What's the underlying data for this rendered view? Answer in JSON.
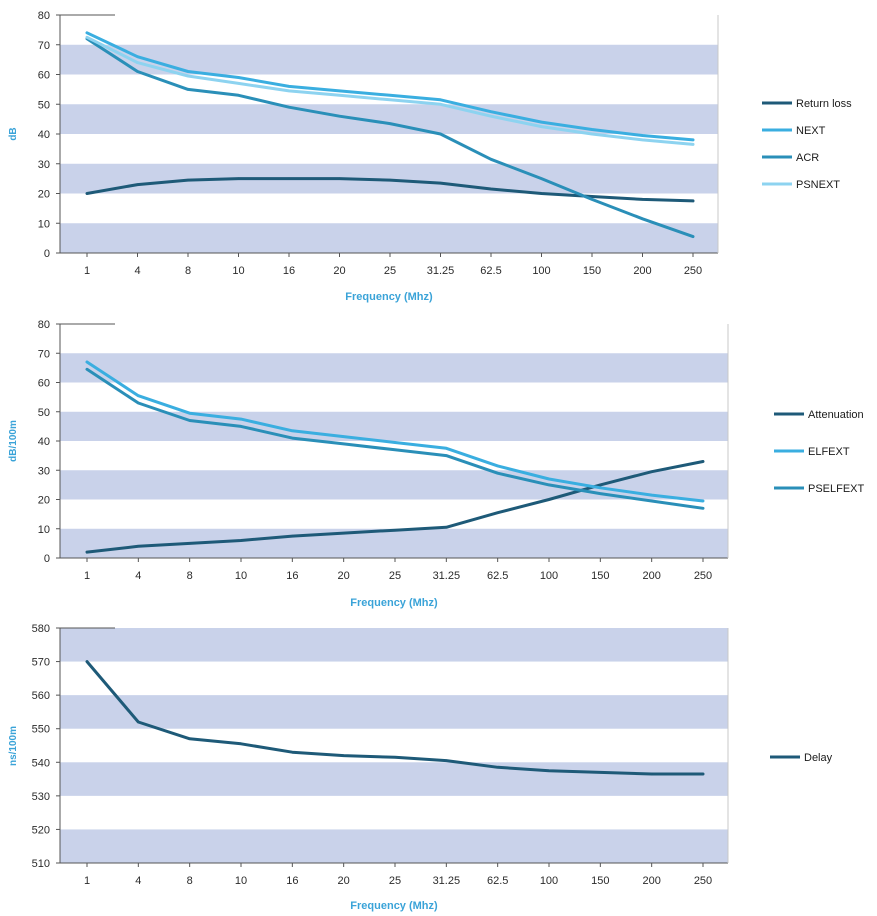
{
  "chart_data": [
    {
      "type": "line",
      "title": "",
      "xlabel": "Frequency (Mhz)",
      "ylabel": "dB",
      "ylim": [
        0,
        80
      ],
      "yticks": [
        0,
        10,
        20,
        30,
        40,
        50,
        60,
        70,
        80
      ],
      "categories": [
        "1",
        "4",
        "8",
        "10",
        "16",
        "20",
        "25",
        "31.25",
        "62.5",
        "100",
        "150",
        "200",
        "250"
      ],
      "grid": "alternating horizontal bands",
      "legend": "right",
      "series": [
        {
          "name": "Return loss",
          "color": "#1e5a78",
          "values": [
            20,
            23,
            24.5,
            25,
            25,
            25,
            24.5,
            23.5,
            21.5,
            20,
            19,
            18,
            17.5
          ]
        },
        {
          "name": "NEXT",
          "color": "#3aaee0",
          "values": [
            74,
            66,
            61,
            59,
            56,
            54.5,
            53,
            51.5,
            47.5,
            44,
            41.5,
            39.5,
            38
          ]
        },
        {
          "name": "ACR",
          "color": "#2a8fb8",
          "values": [
            72,
            61,
            55,
            53,
            49,
            46,
            43.5,
            40,
            31.5,
            25,
            18,
            11.5,
            5.5
          ]
        },
        {
          "name": "PSNEXT",
          "color": "#8dd3f0",
          "values": [
            72.5,
            64,
            59.5,
            57,
            54.5,
            53,
            51.5,
            50,
            46,
            42.5,
            40,
            38,
            36.5
          ]
        }
      ]
    },
    {
      "type": "line",
      "title": "",
      "xlabel": "Frequency (Mhz)",
      "ylabel": "dB/100m",
      "ylim": [
        0,
        80
      ],
      "yticks": [
        0,
        10,
        20,
        30,
        40,
        50,
        60,
        70,
        80
      ],
      "categories": [
        "1",
        "4",
        "8",
        "10",
        "16",
        "20",
        "25",
        "31.25",
        "62.5",
        "100",
        "150",
        "200",
        "250"
      ],
      "grid": "alternating horizontal bands",
      "legend": "right",
      "series": [
        {
          "name": "Attenuation",
          "color": "#1e5a78",
          "values": [
            2,
            4,
            5,
            6,
            7.5,
            8.5,
            9.5,
            10.5,
            15.5,
            20,
            25,
            29.5,
            33
          ]
        },
        {
          "name": "ELFEXT",
          "color": "#3aaee0",
          "values": [
            67,
            55.5,
            49.5,
            47.5,
            43.5,
            41.5,
            39.5,
            37.5,
            31.5,
            27,
            24,
            21.5,
            19.5
          ]
        },
        {
          "name": "PSELFEXT",
          "color": "#2a8fb8",
          "values": [
            64.5,
            53,
            47,
            45,
            41,
            39,
            37,
            35,
            29,
            25,
            22,
            19.5,
            17
          ]
        }
      ]
    },
    {
      "type": "line",
      "title": "",
      "xlabel": "Frequency (Mhz)",
      "ylabel": "ns/100m",
      "ylim": [
        510,
        580
      ],
      "yticks": [
        510,
        520,
        530,
        540,
        550,
        560,
        570,
        580
      ],
      "categories": [
        "1",
        "4",
        "8",
        "10",
        "16",
        "20",
        "25",
        "31.25",
        "62.5",
        "100",
        "150",
        "200",
        "250"
      ],
      "grid": "alternating horizontal bands",
      "legend": "right",
      "series": [
        {
          "name": "Delay",
          "color": "#1e5a78",
          "values": [
            570,
            552,
            547,
            545.5,
            543,
            542,
            541.5,
            540.5,
            538.5,
            537.5,
            537,
            536.5,
            536.5
          ]
        }
      ]
    }
  ],
  "colors": {
    "band": "#c9d2ea",
    "axis": "#555555",
    "label": "#3aa3d8"
  }
}
